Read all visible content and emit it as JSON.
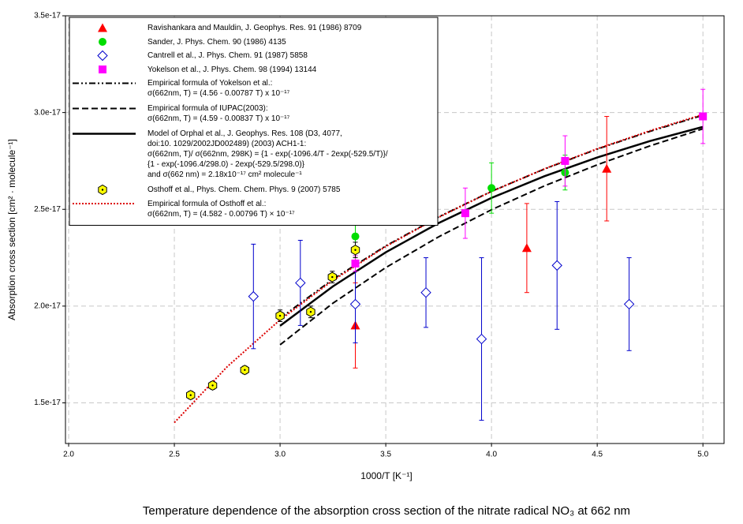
{
  "chart_data": {
    "type": "scatter",
    "title": "Temperature dependence of the absorption cross section of the nitrate radical NO₃ at 662 nm",
    "x_label": "1000/T [K⁻¹]",
    "y_label": "Absorption cross section [cm² · molecule⁻¹]",
    "xlim": [
      1.985,
      5.1
    ],
    "ylim": [
      1.29e-17,
      3.5e-17
    ],
    "xticks": [
      {
        "value": 2.0,
        "label": "2.0"
      },
      {
        "value": 2.5,
        "label": "2.5"
      },
      {
        "value": 3.0,
        "label": "3.0"
      },
      {
        "value": 3.5,
        "label": "3.5"
      },
      {
        "value": 4.0,
        "label": "4.0"
      },
      {
        "value": 4.5,
        "label": "4.5"
      },
      {
        "value": 5.0,
        "label": "5.0"
      }
    ],
    "yticks": [
      {
        "value": 1.5e-17,
        "label": "1.5e-17"
      },
      {
        "value": 2e-17,
        "label": "2.0e-17"
      },
      {
        "value": 2.5e-17,
        "label": "2.5e-17"
      },
      {
        "value": 3e-17,
        "label": "3.0e-17"
      },
      {
        "value": 3.5e-17,
        "label": "3.5e-17"
      }
    ],
    "grid": true,
    "legend": "upper left",
    "series": [
      {
        "name": "Ravishankara and Mauldin, J. Geophys. Res. 91 (1986) 8709",
        "type": "scatter",
        "marker": "triangle",
        "color": "#ff0000",
        "x": [
          3.356,
          4.167,
          4.545
        ],
        "values": [
          1.9e-17,
          2.3e-17,
          2.71e-17
        ],
        "errors": [
          2.2e-18,
          2.3e-18,
          2.7e-18
        ]
      },
      {
        "name": "Sander, J. Phys. Chem. 90 (1986) 4135",
        "type": "scatter",
        "marker": "circle",
        "color": "#00dd00",
        "x": [
          3.356,
          4.0,
          4.348
        ],
        "values": [
          2.36e-17,
          2.61e-17,
          2.69e-17
        ],
        "errors": [
          1e-18,
          1.3e-18,
          9e-19
        ]
      },
      {
        "name": "Cantrell et al., J. Phys. Chem. 91 (1987) 5858",
        "type": "scatter",
        "marker": "diamond",
        "color": "#0000cc",
        "x": [
          2.874,
          3.096,
          3.356,
          3.69,
          3.953,
          4.31,
          4.651
        ],
        "values": [
          2.05e-17,
          2.12e-17,
          2.01e-17,
          2.07e-17,
          1.83e-17,
          2.21e-17,
          2.01e-17
        ],
        "errors": [
          2.7e-18,
          2.2e-18,
          2e-18,
          1.8e-18,
          4.2e-18,
          3.3e-18,
          2.4e-18
        ]
      },
      {
        "name": "Yokelson et al., J. Phys. Chem. 98 (1994) 13144",
        "type": "scatter",
        "marker": "square",
        "color": "#ff00ff",
        "x": [
          3.356,
          3.876,
          4.348,
          5.0
        ],
        "values": [
          2.22e-17,
          2.48e-17,
          2.75e-17,
          2.98e-17
        ],
        "errors": [
          4e-19,
          1.3e-18,
          1.3e-18,
          1.4e-18
        ]
      },
      {
        "name": "Empirical formula of Yokelson et al.:\nσ(662nm, T) = (4.56 - 0.00787 T) x 10⁻¹⁷",
        "type": "line",
        "style": "dashdot",
        "color": "#000000",
        "x": [
          3.0,
          3.25,
          3.5,
          3.75,
          4.0,
          4.25,
          4.5,
          4.75,
          5.0
        ],
        "values": [
          1.937e-17,
          2.139e-17,
          2.311e-17,
          2.461e-17,
          2.593e-17,
          2.708e-17,
          2.811e-17,
          2.903e-17,
          2.986e-17
        ]
      },
      {
        "name": "Empirical formula of IUPAC(2003):\nσ(662nm, T) = (4.59 - 0.00837 T) x 10⁻¹⁷",
        "type": "line",
        "style": "dash",
        "color": "#000000",
        "x": [
          3.0,
          3.25,
          3.5,
          3.75,
          4.0,
          4.25,
          4.5,
          4.75,
          5.0
        ],
        "values": [
          1.8e-17,
          2.015e-17,
          2.199e-17,
          2.358e-17,
          2.498e-17,
          2.621e-17,
          2.73e-17,
          2.828e-17,
          2.916e-17
        ]
      },
      {
        "name": "Model of Orphal et al., J. Geophys. Res. 108 (D3, 4077,\ndoi:10. 1029/2002JD002489) (2003) ACH1-1:\nσ(662nm, T)/ σ(662nm, 298K) = {1 - exp(-1096.4/T - 2exp(-529.5/T)}/\n{1 - exp(-1096.4/298.0) - 2exp(-529.5/298.0)}\nand σ(662 nm) = 2.18x10⁻¹⁷ cm² molecule⁻¹",
        "type": "line",
        "style": "solid",
        "color": "#000000",
        "x": [
          3.0,
          3.25,
          3.5,
          3.75,
          4.0,
          4.25,
          4.5,
          4.75,
          5.0
        ],
        "values": [
          1.898e-17,
          2.102e-17,
          2.278e-17,
          2.429e-17,
          2.559e-17,
          2.671e-17,
          2.768e-17,
          2.853e-17,
          2.926e-17
        ]
      },
      {
        "name": "Osthoff et al., Phys. Chem. Chem. Phys. 9 (2007) 5785",
        "type": "scatter",
        "marker": "hexagon",
        "color": "#ffff00",
        "x": [
          2.577,
          2.681,
          2.833,
          3.0,
          3.145,
          3.247,
          3.356
        ],
        "values": [
          1.54e-17,
          1.59e-17,
          1.67e-17,
          1.95e-17,
          1.97e-17,
          2.15e-17,
          2.29e-17
        ],
        "errors": [
          2e-19,
          2e-19,
          2e-19,
          3e-19,
          3e-19,
          3e-19,
          4e-19
        ]
      },
      {
        "name": "Empirical formula  of Osthoff et al.:\nσ(662nm, T) = (4.582 - 0.00796 T) × 10⁻¹⁷",
        "type": "line",
        "style": "dot",
        "color": "#dd0000",
        "x": [
          2.5,
          2.75,
          3.0,
          3.25,
          3.5,
          3.75,
          4.0,
          4.25,
          4.5,
          4.75,
          5.0
        ],
        "values": [
          1.398e-17,
          1.687e-17,
          1.929e-17,
          2.133e-17,
          2.308e-17,
          2.459e-17,
          2.592e-17,
          2.709e-17,
          2.813e-17,
          2.906e-17,
          2.99e-17
        ]
      }
    ]
  }
}
